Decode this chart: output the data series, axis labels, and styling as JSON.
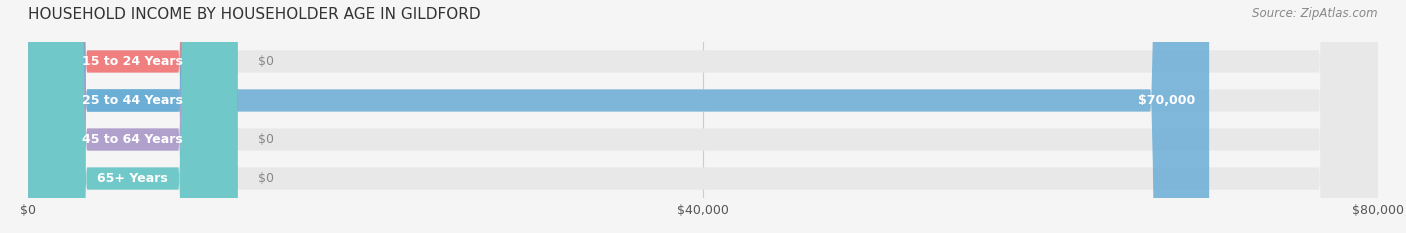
{
  "title": "HOUSEHOLD INCOME BY HOUSEHOLDER AGE IN GILDFORD",
  "source": "Source: ZipAtlas.com",
  "categories": [
    "15 to 24 Years",
    "25 to 44 Years",
    "45 to 64 Years",
    "65+ Years"
  ],
  "values": [
    0,
    70000,
    0,
    0
  ],
  "bar_colors": [
    "#f08080",
    "#6baed6",
    "#b0a0cc",
    "#70c8c8"
  ],
  "label_colors": [
    "#f08080",
    "#6baed6",
    "#b0a0cc",
    "#70c8c8"
  ],
  "bar_bg_color": "#eeeeee",
  "xlim": [
    0,
    80000
  ],
  "xticks": [
    0,
    40000,
    80000
  ],
  "xticklabels": [
    "$0",
    "$40,000",
    "$80,000"
  ],
  "value_labels": [
    "$0",
    "$70,000",
    "$0",
    "$0"
  ],
  "fig_bg_color": "#f5f5f5",
  "bar_height": 0.55,
  "title_fontsize": 11,
  "source_fontsize": 8.5,
  "label_fontsize": 9,
  "tick_fontsize": 9
}
